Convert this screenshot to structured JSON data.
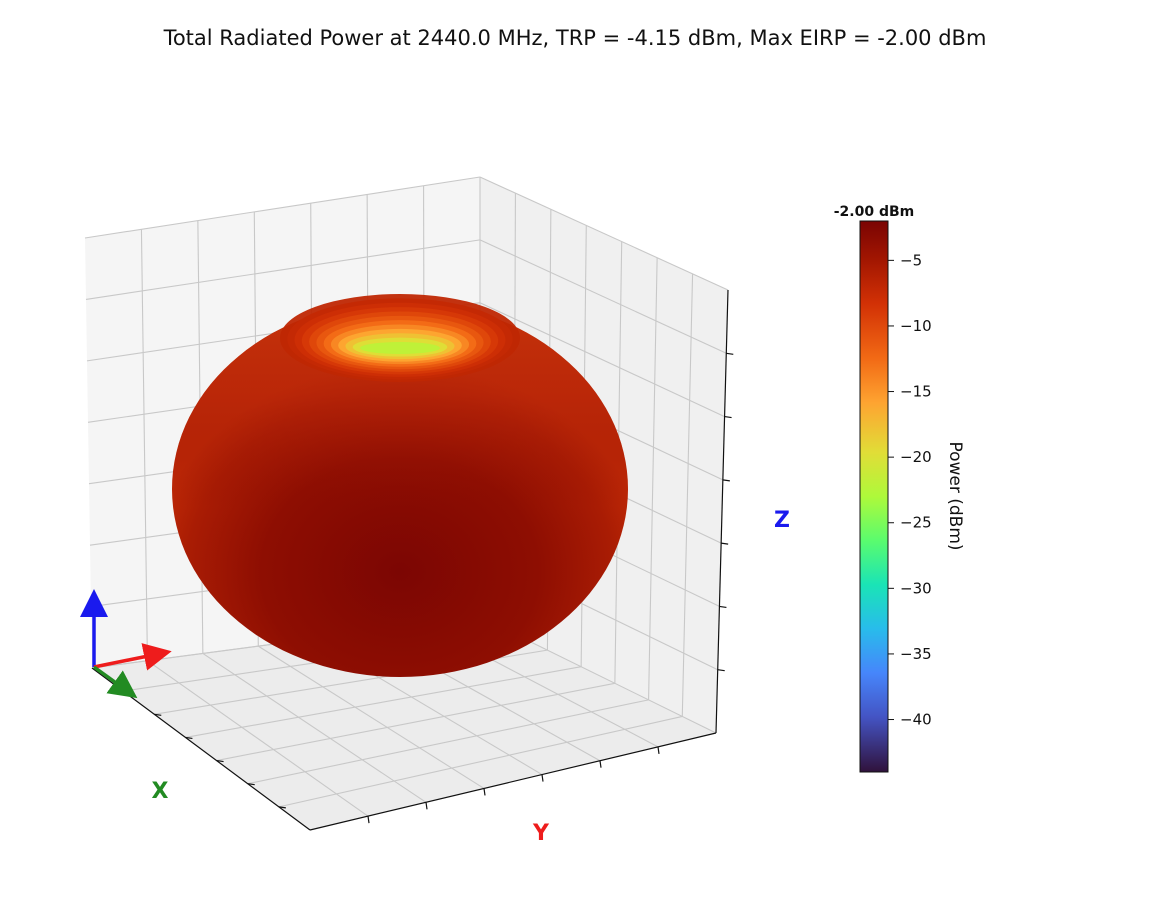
{
  "chart_data": {
    "type": "surface3d",
    "title": "Total Radiated Power at 2440.0 MHz, TRP = -4.15 dBm, Max EIRP = -2.00 dBm",
    "frequency_mhz": 2440.0,
    "trp_dbm": -4.15,
    "max_eirp_dbm": -2.0,
    "axes": {
      "x_label": "X",
      "y_label": "Y",
      "z_label": "Z"
    },
    "axis_colors": {
      "x": "#228b22",
      "y": "#ee1c1c",
      "z": "#1a1aee"
    },
    "colorbar": {
      "label": "Power (dBm)",
      "max_label": "-2.00 dBm",
      "range": [
        -44,
        -2
      ],
      "ticks": [
        -5,
        -10,
        -15,
        -20,
        -25,
        -30,
        -35,
        -40
      ],
      "tick_labels": [
        "−5",
        "−10",
        "−15",
        "−20",
        "−25",
        "−30",
        "−35",
        "−40"
      ],
      "colormap": "turbo"
    },
    "pattern": {
      "shape": "toroidal",
      "peak_power_dbm": -2.0,
      "top_null_power_dbm": -22.0
    },
    "grid": true
  }
}
